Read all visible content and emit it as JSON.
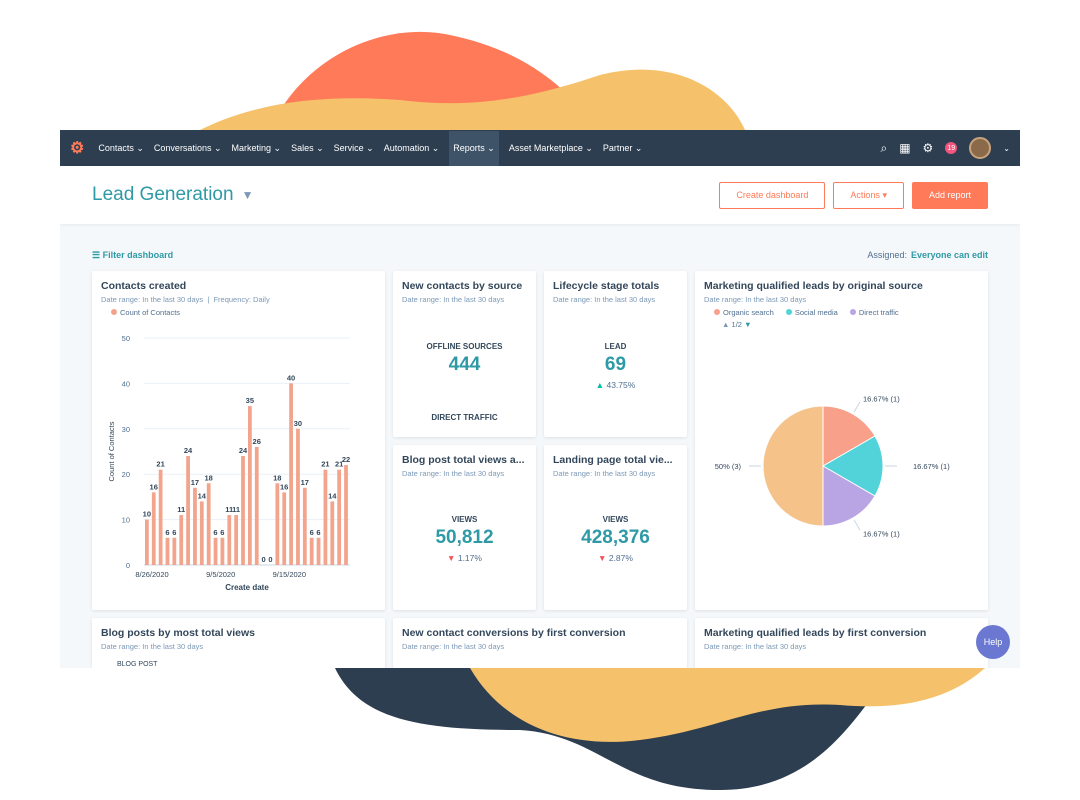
{
  "nav": {
    "items": [
      "Contacts",
      "Conversations",
      "Marketing",
      "Sales",
      "Service",
      "Automation",
      "Reports",
      "Asset Marketplace",
      "Partner"
    ],
    "active": "Reports",
    "notification_count": "19"
  },
  "header": {
    "title": "Lead Generation",
    "create_dashboard": "Create dashboard",
    "actions": "Actions",
    "add_report": "Add report"
  },
  "filter": {
    "label": "Filter dashboard",
    "assigned_label": "Assigned:",
    "assigned_value": "Everyone can edit"
  },
  "cards": {
    "contacts": {
      "title": "Contacts created",
      "sub": "Date range: In the last 30 days",
      "freq": "Frequency: Daily"
    },
    "source": {
      "title": "New contacts by source",
      "sub": "Date range: In the last 30 days",
      "label": "OFFLINE SOURCES",
      "value": "444",
      "label2": "DIRECT TRAFFIC"
    },
    "lifecycle": {
      "title": "Lifecycle stage totals",
      "sub": "Date range: In the last 30 days",
      "label": "LEAD",
      "value": "69",
      "change": "43.75%"
    },
    "blog": {
      "title": "Blog post total views a...",
      "sub": "Date range: In the last 30 days",
      "label": "VIEWS",
      "value": "50,812",
      "change": "1.17%"
    },
    "landing": {
      "title": "Landing page total vie...",
      "sub": "Date range: In the last 30 days",
      "label": "VIEWS",
      "value": "428,376",
      "change": "2.87%"
    },
    "mql": {
      "title": "Marketing qualified leads by original source",
      "sub": "Date range: In the last 30 days",
      "page": "1/2"
    },
    "blogposts": {
      "title": "Blog posts by most total views",
      "sub": "Date range: In the last 30 days",
      "col": "BLOG POST"
    },
    "conversions": {
      "title": "New contact conversions by first conversion",
      "sub": "Date range: In the last 30 days"
    },
    "mqlfirst": {
      "title": "Marketing qualified leads by first conversion",
      "sub": "Date range: In the last 30 days"
    }
  },
  "help": "Help",
  "colors": {
    "accent": "#ff7a59",
    "teal": "#2e9aa6",
    "nav": "#2d3e50",
    "bar": "#f2a48c"
  },
  "chart_data": [
    {
      "type": "bar",
      "title": "Contacts created",
      "xlabel": "Create date",
      "ylabel": "Count of Contacts",
      "ylim": [
        0,
        50
      ],
      "yticks": [
        0,
        10,
        20,
        30,
        40,
        50
      ],
      "xtick_labels": [
        "8/26/2020",
        "9/5/2020",
        "9/15/2020"
      ],
      "series": [
        {
          "name": "Count of Contacts",
          "values": [
            10,
            16,
            21,
            6,
            6,
            11,
            24,
            17,
            14,
            18,
            6,
            6,
            11,
            11,
            24,
            35,
            26,
            0,
            0,
            18,
            16,
            40,
            30,
            17,
            6,
            6,
            21,
            14,
            21,
            22
          ]
        }
      ],
      "grid": true,
      "legend": "top-left"
    },
    {
      "type": "pie",
      "title": "Marketing qualified leads by original source",
      "slices": [
        {
          "name": "Organic search",
          "value": 1,
          "label": "16.67% (1)",
          "color": "#f8a08a"
        },
        {
          "name": "Social media",
          "value": 1,
          "label": "16.67% (1)",
          "color": "#51d3d9"
        },
        {
          "name": "Direct traffic",
          "value": 1,
          "label": "16.67% (1)",
          "color": "#b9a4e4"
        },
        {
          "value": 3,
          "label": "50% (3)",
          "color": "#f5c28a"
        }
      ],
      "legend": "top"
    }
  ]
}
